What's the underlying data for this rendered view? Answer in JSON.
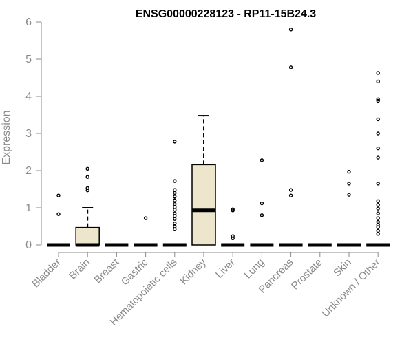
{
  "chart_data": {
    "type": "box",
    "title": "ENSG00000228123 - RP11-15B24.3",
    "ylabel": "Expression",
    "xlabel": "",
    "ylim": [
      0,
      6
    ],
    "yticks": [
      0,
      1,
      2,
      3,
      4,
      5,
      6
    ],
    "grid": false,
    "box_fill": "#ede6cd",
    "box_stroke": "#000000",
    "axis_color": "#8a8a8a",
    "categories": [
      "Bladder",
      "Brain",
      "Breast",
      "Gastric",
      "Hematopoietic cells",
      "Kidney",
      "Liver",
      "Lung",
      "Pancreas",
      "Prostate",
      "Skin",
      "Unknown / Other"
    ],
    "boxes": [
      {
        "q1": 0,
        "median": 0,
        "q3": 0,
        "whisker_low": 0,
        "whisker_high": 0,
        "outliers": [
          0.83,
          1.33
        ]
      },
      {
        "q1": 0,
        "median": 0,
        "q3": 0.47,
        "whisker_low": 0,
        "whisker_high": 1.0,
        "outliers": [
          1.47,
          1.53,
          1.83,
          2.05
        ]
      },
      {
        "q1": 0,
        "median": 0,
        "q3": 0,
        "whisker_low": 0,
        "whisker_high": 0,
        "outliers": []
      },
      {
        "q1": 0,
        "median": 0,
        "q3": 0,
        "whisker_low": 0,
        "whisker_high": 0,
        "outliers": [
          0.72
        ]
      },
      {
        "q1": 0,
        "median": 0,
        "q3": 0,
        "whisker_low": 0,
        "whisker_high": 0,
        "outliers": [
          0.42,
          0.5,
          0.58,
          0.7,
          0.78,
          0.85,
          0.95,
          1.02,
          1.1,
          1.2,
          1.3,
          1.4,
          1.48,
          1.72,
          2.78
        ]
      },
      {
        "q1": 0,
        "median": 0.93,
        "q3": 2.16,
        "whisker_low": 0,
        "whisker_high": 3.48,
        "outliers": []
      },
      {
        "q1": 0,
        "median": 0,
        "q3": 0,
        "whisker_low": 0,
        "whisker_high": 0,
        "outliers": [
          0.18,
          0.24,
          0.93,
          0.96
        ]
      },
      {
        "q1": 0,
        "median": 0,
        "q3": 0,
        "whisker_low": 0,
        "whisker_high": 0,
        "outliers": [
          0.8,
          1.12,
          2.28
        ]
      },
      {
        "q1": 0,
        "median": 0,
        "q3": 0,
        "whisker_low": 0,
        "whisker_high": 0,
        "outliers": [
          1.33,
          1.48,
          4.78,
          5.8
        ]
      },
      {
        "q1": 0,
        "median": 0,
        "q3": 0,
        "whisker_low": 0,
        "whisker_high": 0,
        "outliers": []
      },
      {
        "q1": 0,
        "median": 0,
        "q3": 0,
        "whisker_low": 0,
        "whisker_high": 0,
        "outliers": [
          1.35,
          1.65,
          1.97
        ]
      },
      {
        "q1": 0,
        "median": 0,
        "q3": 0,
        "whisker_low": 0,
        "whisker_high": 0,
        "outliers": [
          0.3,
          0.38,
          0.48,
          0.55,
          0.62,
          0.72,
          0.85,
          0.98,
          1.08,
          1.18,
          1.65,
          2.35,
          2.6,
          3.0,
          3.38,
          3.88,
          3.92,
          4.4,
          4.63
        ]
      }
    ]
  }
}
